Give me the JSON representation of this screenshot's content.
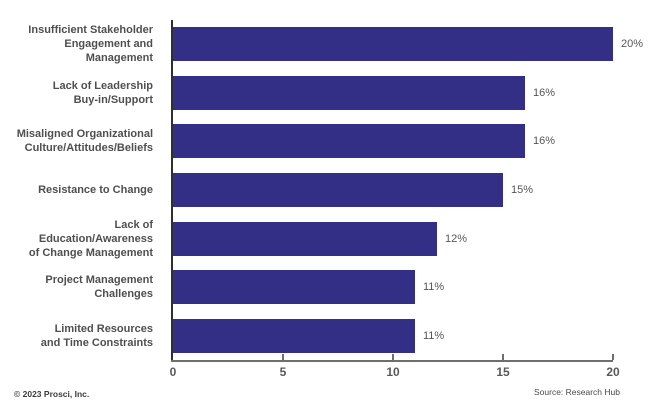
{
  "chart_data": {
    "type": "bar",
    "orientation": "horizontal",
    "title": "",
    "xlabel": "",
    "ylabel": "",
    "categories": [
      "Insufficient Stakeholder\nEngagement and Management",
      "Lack of Leadership\nBuy-in/Support",
      "Misaligned Organizational\nCulture/Attitudes/Beliefs",
      "Resistance to Change",
      "Lack of Education/Awareness\nof Change Management",
      "Project Management Challenges",
      "Limited Resources\nand Time Constraints"
    ],
    "values": [
      20,
      16,
      16,
      15,
      12,
      11,
      11
    ],
    "value_labels": [
      "20%",
      "16%",
      "16%",
      "15%",
      "12%",
      "11%",
      "11%"
    ],
    "xlim": [
      0,
      20
    ],
    "x_ticks": [
      0,
      5,
      10,
      15,
      20
    ],
    "grid": false,
    "legend": "none",
    "bar_color": "#332f87",
    "axis_color": "#6e6e6e",
    "label_color": "#4f4f4f"
  },
  "footer": {
    "copyright": "© 2023 Prosci, Inc.",
    "source": "Source: Research Hub"
  }
}
